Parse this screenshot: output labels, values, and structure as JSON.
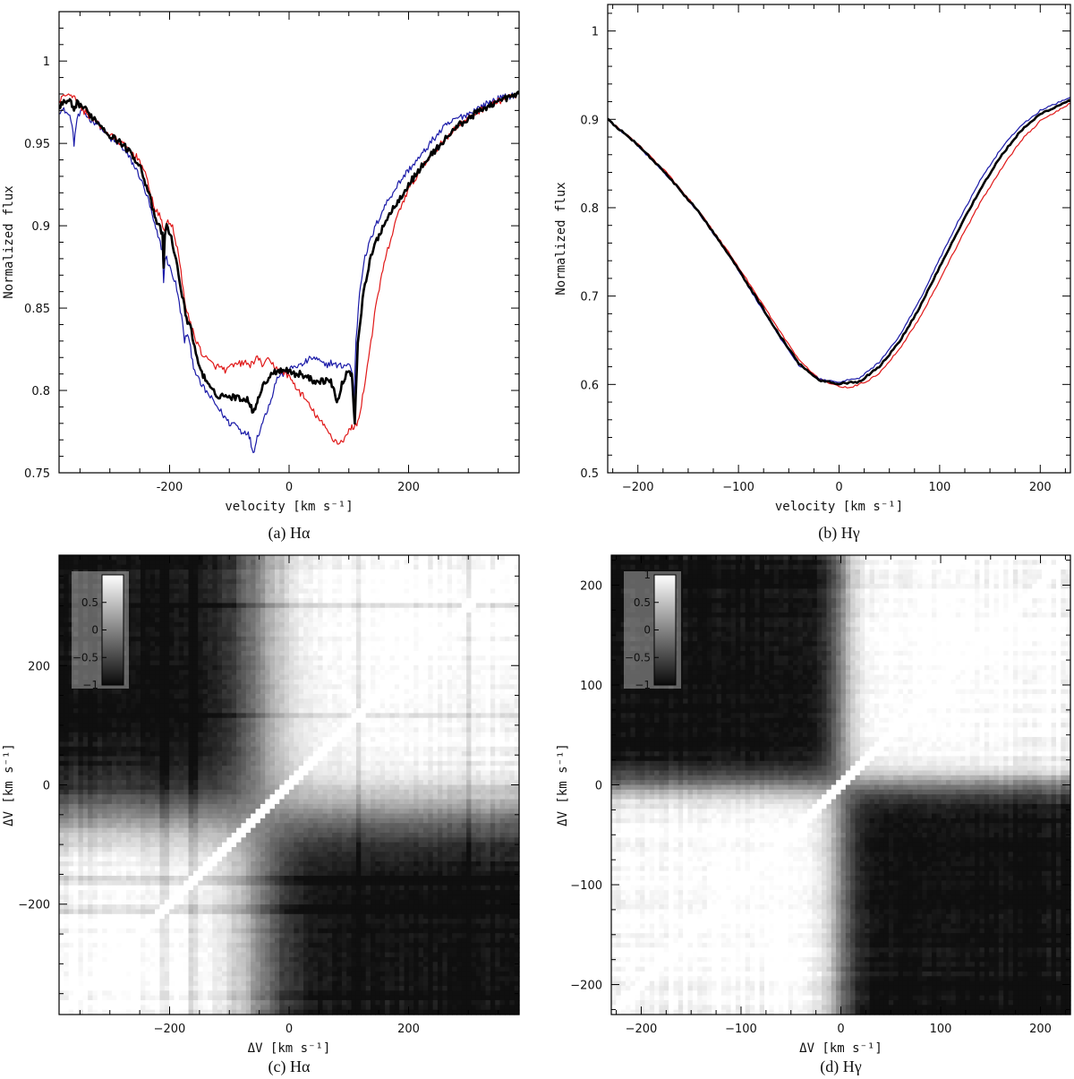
{
  "chart_data": [
    {
      "type": "line",
      "caption": "(a) Hα",
      "xlabel": "velocity [km s⁻¹]",
      "ylabel": "Normalized flux",
      "xlim": [
        -385,
        385
      ],
      "ylim": [
        0.75,
        1.03
      ],
      "xticks": [
        -200,
        0,
        200
      ],
      "yticks": [
        0.75,
        0.8,
        0.85,
        0.9,
        0.95,
        1
      ],
      "ytick_labels": [
        "0.75",
        "0.8",
        "0.85",
        "0.9",
        "0.95",
        "1"
      ],
      "grid": false,
      "legend": "none",
      "series": [
        {
          "color": "#1a1aa8",
          "x": [
            -385,
            -375,
            -365,
            -360,
            -355,
            -345,
            -335,
            -320,
            -300,
            -280,
            -265,
            -250,
            -235,
            -225,
            -212,
            -210,
            -208,
            -205,
            -200,
            -190,
            -180,
            -175,
            -170,
            -165,
            -160,
            -150,
            -140,
            -130,
            -120,
            -110,
            -100,
            -90,
            -80,
            -70,
            -65,
            -60,
            -55,
            -50,
            -40,
            -30,
            -20,
            -10,
            0,
            10,
            20,
            30,
            40,
            50,
            60,
            70,
            80,
            90,
            100,
            105,
            108,
            112,
            118,
            125,
            135,
            145,
            160,
            180,
            200,
            220,
            240,
            260,
            280,
            300,
            320,
            340,
            360,
            385
          ],
          "y": [
            0.97,
            0.97,
            0.965,
            0.95,
            0.965,
            0.97,
            0.965,
            0.962,
            0.953,
            0.948,
            0.94,
            0.93,
            0.915,
            0.9,
            0.885,
            0.865,
            0.88,
            0.88,
            0.875,
            0.865,
            0.845,
            0.83,
            0.835,
            0.825,
            0.815,
            0.805,
            0.8,
            0.795,
            0.79,
            0.785,
            0.78,
            0.78,
            0.775,
            0.775,
            0.77,
            0.762,
            0.77,
            0.775,
            0.785,
            0.795,
            0.808,
            0.81,
            0.812,
            0.815,
            0.815,
            0.818,
            0.82,
            0.818,
            0.815,
            0.817,
            0.815,
            0.815,
            0.816,
            0.812,
            0.79,
            0.83,
            0.86,
            0.878,
            0.89,
            0.9,
            0.912,
            0.924,
            0.934,
            0.942,
            0.952,
            0.96,
            0.965,
            0.968,
            0.972,
            0.976,
            0.978,
            0.98
          ]
        },
        {
          "color": "#e01818",
          "x": [
            -385,
            -375,
            -365,
            -355,
            -345,
            -335,
            -320,
            -300,
            -280,
            -265,
            -250,
            -235,
            -225,
            -215,
            -210,
            -205,
            -195,
            -185,
            -175,
            -165,
            -155,
            -145,
            -135,
            -125,
            -115,
            -105,
            -95,
            -85,
            -75,
            -65,
            -55,
            -45,
            -35,
            -25,
            -15,
            -5,
            5,
            15,
            25,
            35,
            45,
            55,
            65,
            75,
            85,
            95,
            100,
            105,
            110,
            115,
            125,
            135,
            145,
            155,
            165,
            175,
            185,
            200,
            220,
            240,
            260,
            280,
            300,
            320,
            340,
            360,
            385
          ],
          "y": [
            0.975,
            0.98,
            0.98,
            0.975,
            0.97,
            0.967,
            0.962,
            0.955,
            0.95,
            0.945,
            0.94,
            0.925,
            0.91,
            0.905,
            0.897,
            0.902,
            0.9,
            0.882,
            0.855,
            0.84,
            0.83,
            0.822,
            0.818,
            0.815,
            0.814,
            0.812,
            0.815,
            0.816,
            0.817,
            0.815,
            0.82,
            0.816,
            0.818,
            0.815,
            0.812,
            0.81,
            0.806,
            0.8,
            0.796,
            0.79,
            0.785,
            0.78,
            0.775,
            0.77,
            0.768,
            0.772,
            0.775,
            0.778,
            0.778,
            0.78,
            0.8,
            0.825,
            0.85,
            0.87,
            0.885,
            0.898,
            0.91,
            0.922,
            0.934,
            0.944,
            0.952,
            0.96,
            0.965,
            0.97,
            0.974,
            0.977,
            0.98
          ]
        },
        {
          "color": "#000000",
          "x": [
            -385,
            -375,
            -365,
            -360,
            -355,
            -345,
            -335,
            -320,
            -300,
            -280,
            -265,
            -250,
            -235,
            -225,
            -212,
            -210,
            -208,
            -205,
            -195,
            -185,
            -175,
            -170,
            -165,
            -160,
            -150,
            -140,
            -130,
            -120,
            -110,
            -100,
            -90,
            -80,
            -70,
            -65,
            -60,
            -55,
            -50,
            -40,
            -30,
            -20,
            -10,
            0,
            10,
            20,
            30,
            40,
            50,
            60,
            70,
            75,
            80,
            85,
            90,
            100,
            105,
            110,
            115,
            125,
            135,
            145,
            160,
            180,
            200,
            220,
            240,
            260,
            280,
            300,
            320,
            340,
            360,
            385
          ],
          "y": [
            0.972,
            0.975,
            0.975,
            0.968,
            0.975,
            0.972,
            0.968,
            0.963,
            0.955,
            0.95,
            0.944,
            0.937,
            0.92,
            0.905,
            0.895,
            0.875,
            0.895,
            0.9,
            0.89,
            0.87,
            0.85,
            0.842,
            0.84,
            0.828,
            0.815,
            0.806,
            0.8,
            0.797,
            0.797,
            0.796,
            0.796,
            0.795,
            0.795,
            0.792,
            0.785,
            0.793,
            0.797,
            0.805,
            0.81,
            0.812,
            0.813,
            0.812,
            0.81,
            0.81,
            0.808,
            0.806,
            0.806,
            0.806,
            0.806,
            0.8,
            0.792,
            0.798,
            0.806,
            0.812,
            0.81,
            0.78,
            0.83,
            0.86,
            0.878,
            0.89,
            0.902,
            0.914,
            0.925,
            0.935,
            0.944,
            0.952,
            0.96,
            0.965,
            0.97,
            0.974,
            0.977,
            0.98
          ]
        }
      ]
    },
    {
      "type": "line",
      "caption": "(b) Hγ",
      "xlabel": "velocity [km s⁻¹]",
      "ylabel": "Normalized flux",
      "xlim": [
        -230,
        230
      ],
      "ylim": [
        0.5,
        1.03
      ],
      "xticks": [
        -200,
        -100,
        0,
        100,
        200
      ],
      "xtick_labels": [
        "−200",
        "−100",
        "0",
        "100",
        "200"
      ],
      "yticks": [
        0.5,
        0.6,
        0.7,
        0.8,
        0.9,
        1
      ],
      "ytick_labels": [
        "0.5",
        "0.6",
        "0.7",
        "0.8",
        "0.9",
        "1"
      ],
      "grid": false,
      "legend": "none",
      "series": [
        {
          "color": "#e01818",
          "x": [
            -230,
            -200,
            -170,
            -140,
            -110,
            -80,
            -60,
            -40,
            -20,
            0,
            10,
            20,
            30,
            40,
            60,
            80,
            100,
            120,
            140,
            160,
            180,
            200,
            230
          ],
          "y": [
            0.9,
            0.872,
            0.838,
            0.797,
            0.75,
            0.698,
            0.662,
            0.628,
            0.606,
            0.598,
            0.596,
            0.6,
            0.605,
            0.613,
            0.64,
            0.675,
            0.718,
            0.763,
            0.805,
            0.842,
            0.875,
            0.898,
            0.918
          ]
        },
        {
          "color": "#1a1aa8",
          "x": [
            -230,
            -200,
            -170,
            -140,
            -110,
            -80,
            -60,
            -40,
            -20,
            0,
            20,
            40,
            60,
            80,
            100,
            120,
            140,
            160,
            180,
            200,
            230
          ],
          "y": [
            0.9,
            0.87,
            0.835,
            0.795,
            0.747,
            0.692,
            0.655,
            0.622,
            0.606,
            0.603,
            0.607,
            0.625,
            0.655,
            0.695,
            0.742,
            0.788,
            0.83,
            0.865,
            0.892,
            0.91,
            0.925
          ]
        },
        {
          "color": "#000000",
          "x": [
            -230,
            -200,
            -170,
            -140,
            -110,
            -80,
            -60,
            -40,
            -20,
            0,
            20,
            40,
            60,
            80,
            100,
            120,
            140,
            160,
            180,
            200,
            230
          ],
          "y": [
            0.9,
            0.871,
            0.836,
            0.796,
            0.748,
            0.694,
            0.657,
            0.624,
            0.605,
            0.601,
            0.603,
            0.62,
            0.648,
            0.687,
            0.733,
            0.778,
            0.82,
            0.857,
            0.886,
            0.906,
            0.922
          ]
        }
      ]
    },
    {
      "type": "heatmap",
      "caption": "(c) Hα",
      "xlabel": "ΔV [km s⁻¹]",
      "ylabel": "ΔV [km s⁻¹]",
      "xlim": [
        -385,
        385
      ],
      "ylim": [
        -385,
        385
      ],
      "xticks": [
        -200,
        0,
        200
      ],
      "xtick_labels": [
        "−200",
        "0",
        "200"
      ],
      "yticks": [
        -200,
        0,
        200
      ],
      "ytick_labels": [
        "−200",
        "0",
        "200"
      ],
      "colorbar": {
        "range": [
          -1,
          1
        ],
        "ticks": [
          1,
          0.5,
          0,
          -0.5,
          -1
        ],
        "tick_labels": [
          "",
          "0.5",
          "0",
          "−0.5",
          "−1"
        ],
        "placement": "top-left"
      },
      "structure": {
        "boundary": -50,
        "features": [
          -210,
          -160,
          115,
          300
        ]
      }
    },
    {
      "type": "heatmap",
      "caption": "(d) Hγ",
      "xlabel": "ΔV [km s⁻¹]",
      "ylabel": "ΔV [km s⁻¹]",
      "xlim": [
        -230,
        230
      ],
      "ylim": [
        -230,
        230
      ],
      "xticks": [
        -200,
        -100,
        0,
        100,
        200
      ],
      "xtick_labels": [
        "−200",
        "−100",
        "0",
        "100",
        "200"
      ],
      "yticks": [
        -200,
        -100,
        0,
        100,
        200
      ],
      "ytick_labels": [
        "−200",
        "−100",
        "0",
        "100",
        "200"
      ],
      "colorbar": {
        "range": [
          -1,
          1
        ],
        "ticks": [
          1,
          0.5,
          0,
          -0.5,
          -1
        ],
        "tick_labels": [
          "1",
          "0.5",
          "0",
          "−0.5",
          "−1"
        ],
        "placement": "top-left"
      },
      "structure": {
        "boundary": 0,
        "features": []
      }
    }
  ]
}
